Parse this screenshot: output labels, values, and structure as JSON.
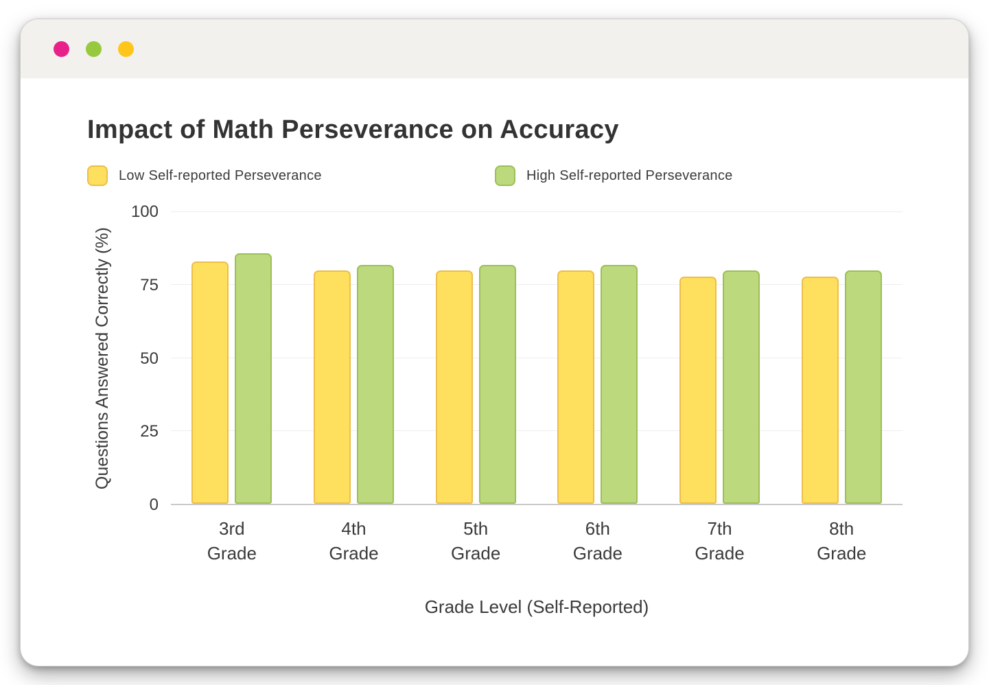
{
  "window": {
    "traffic_lights": [
      {
        "name": "close",
        "color": "#e8218a"
      },
      {
        "name": "minimize",
        "color": "#97c93e"
      },
      {
        "name": "zoom",
        "color": "#ffc61a"
      }
    ]
  },
  "chart_data": {
    "type": "bar",
    "title": "Impact of Math Perseverance on Accuracy",
    "xlabel": "Grade Level (Self-Reported)",
    "ylabel": "Questions Answered Correctly (%)",
    "categories": [
      "3rd Grade",
      "4th Grade",
      "5th Grade",
      "6th Grade",
      "7th Grade",
      "8th Grade"
    ],
    "series": [
      {
        "name": "Low Self-reported Perseverance",
        "values": [
          83,
          80,
          80,
          80,
          78,
          78
        ],
        "fill": "#ffdf5e",
        "stroke": "#ecbe4a"
      },
      {
        "name": "High Self-reported Perseverance",
        "values": [
          86,
          82,
          82,
          82,
          80,
          80
        ],
        "fill": "#bcd97e",
        "stroke": "#9cbf57"
      }
    ],
    "ylim": [
      0,
      100
    ],
    "yticks": [
      0,
      25,
      50,
      75,
      100
    ],
    "grid": true,
    "legend_position": "top"
  }
}
